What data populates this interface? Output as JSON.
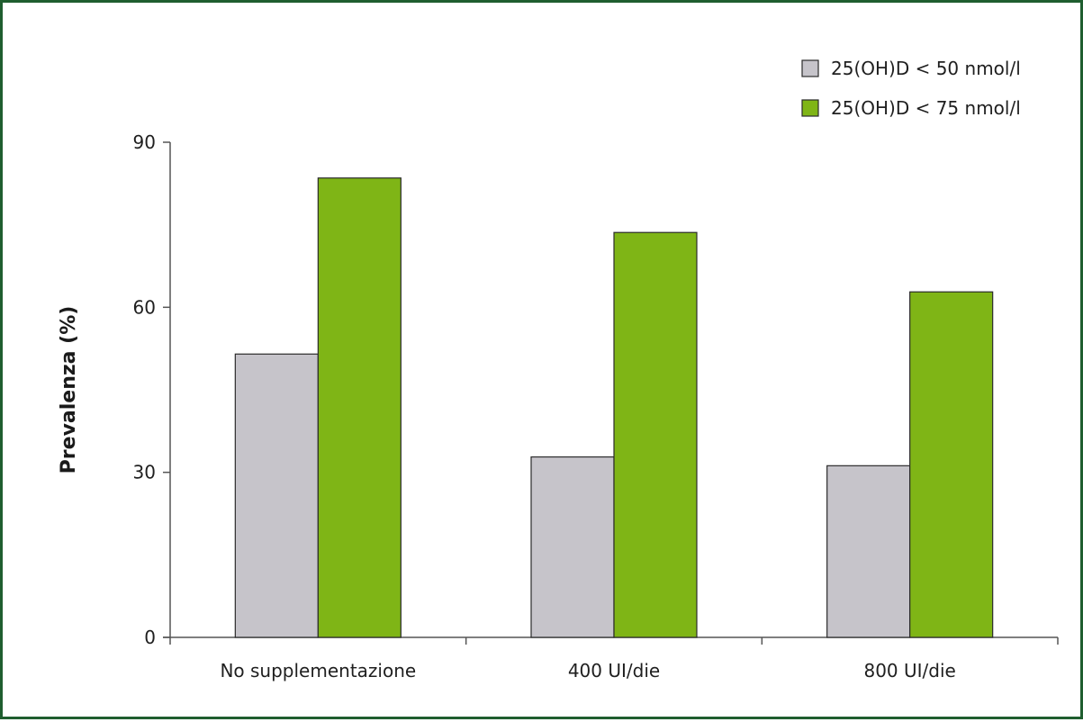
{
  "chart_data": {
    "type": "bar",
    "title": "",
    "xlabel": "",
    "ylabel": "Prevalenza (%)",
    "ylim": [
      0,
      90
    ],
    "yticks": [
      0,
      30,
      60,
      90
    ],
    "grid": false,
    "legend_position": "top-right",
    "categories": [
      "No supplementazione",
      "400 UI/die",
      "800 UI/die"
    ],
    "series": [
      {
        "name": "25(OH)D < 50 nmol/l",
        "values": [
          51.5,
          32.8,
          31.2
        ],
        "color": "#c6c4ca"
      },
      {
        "name": "25(OH)D < 75 nmol/l",
        "values": [
          83.5,
          73.6,
          62.8
        ],
        "color": "#7fb516"
      }
    ]
  },
  "colors": {
    "frame": "#1f5e2f",
    "axis": "#555555",
    "bar_stroke": "#2b2b2b"
  }
}
